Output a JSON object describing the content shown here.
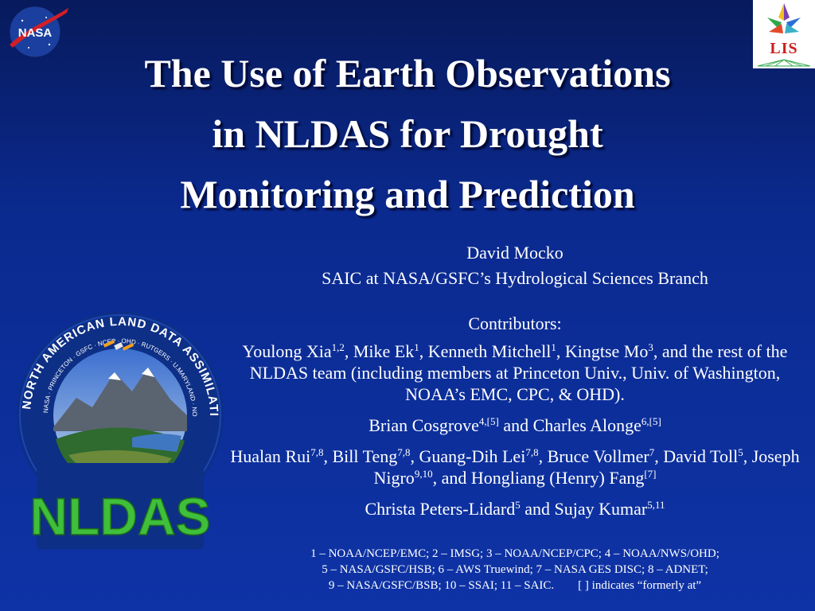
{
  "title": {
    "line1": "The Use of Earth Observations",
    "line2": "in NLDAS for Drought",
    "line3": "Monitoring and Prediction"
  },
  "presenter": {
    "name": "David Mocko",
    "affiliation": "SAIC at NASA/GSFC’s Hydrological Sciences Branch"
  },
  "contributors_heading": "Contributors:",
  "contributors": {
    "group1": {
      "p1": "Youlong Xia",
      "s1": "1,2",
      "p2": ", Mike Ek",
      "s2": "1",
      "p3": ", Kenneth Mitchell",
      "s3": "1",
      "p4": ", Kingtse Mo",
      "s4": "3",
      "p5": ", and the rest of the NLDAS team (including members at Princeton Univ., Univ. of Washington, NOAA’s EMC, CPC, & OHD)."
    },
    "group2": {
      "p1": "Brian Cosgrove",
      "s1": "4,[5]",
      "p2": " and Charles Alonge",
      "s2": "6,[5]"
    },
    "group3": {
      "p1": "Hualan Rui",
      "s1": "7,8",
      "p2": ", Bill Teng",
      "s2": "7,8",
      "p3": ", Guang-Dih Lei",
      "s3": "7,8",
      "p4": ", Bruce Vollmer",
      "s4": "7",
      "p5": ", David Toll",
      "s5": "5",
      "p6": ", Joseph Nigro",
      "s6": "9,10",
      "p7": ", and Hongliang (Henry) Fang",
      "s7": "[7]"
    },
    "group4": {
      "p1": "Christa Peters-Lidard",
      "s1": "5",
      "p2": " and Sujay Kumar",
      "s2": "5,11"
    }
  },
  "footnotes": {
    "line1": "1 – NOAA/NCEP/EMC; 2 – IMSG; 3 – NOAA/NCEP/CPC; 4 – NOAA/NWS/OHD;",
    "line2": "5 – NASA/GSFC/HSB; 6 – AWS Truewind; 7 – NASA GES DISC; 8 – ADNET;",
    "line3": "9 – NASA/GSFC/BSB; 10 – SSAI; 11 – SAIC.        [ ] indicates “formerly at”"
  },
  "logos": {
    "nasa_text": "NASA",
    "lis_text": "LIS",
    "nldas_text": "NLDAS",
    "nldas_ring_text": "NORTH AMERICAN LAND DATA ASSIMILATION SYSTEM",
    "nldas_inner_ring_text": "NASA · PRINCETON · GSFC · NCEP · OHD · RUTGERS · U.MARYLAND · NOAA · U.WASHINGTON"
  },
  "colors": {
    "background": "#0b2a8f",
    "nldas_green": "#3fbf3a",
    "nasa_red": "#d21f26",
    "lis_red": "#cc1f1f"
  }
}
